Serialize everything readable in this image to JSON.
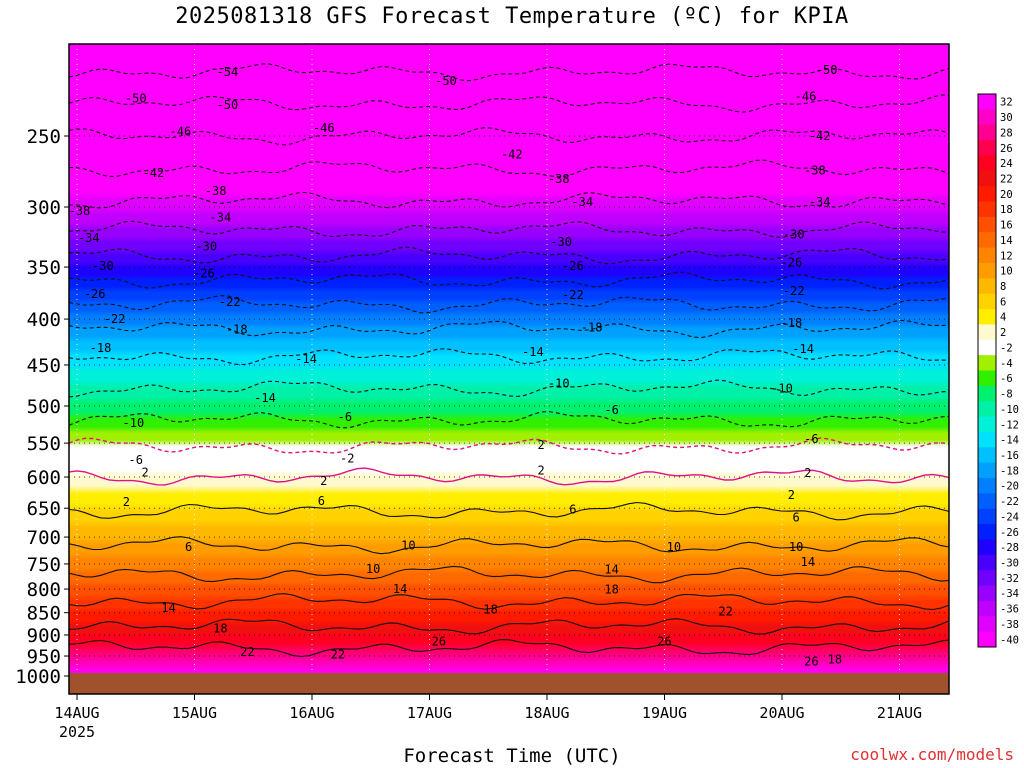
{
  "title": "2025081318 GFS Forecast Temperature (ºC) for KPIA",
  "credit": "coolwx.com/models",
  "chart_data": {
    "type": "heatmap",
    "title": "2025081318 GFS Forecast Temperature (ºC) for KPIA",
    "xlabel": "Forecast Time (UTC)",
    "ylabel": "",
    "y_scale": "log-pressure",
    "y_range_hPa": [
      1000,
      200
    ],
    "y_ticks": [
      250,
      300,
      350,
      400,
      450,
      500,
      550,
      600,
      650,
      700,
      750,
      800,
      850,
      900,
      950,
      1000
    ],
    "x_ticks": [
      "14AUG",
      "15AUG",
      "16AUG",
      "17AUG",
      "18AUG",
      "19AUG",
      "20AUG",
      "21AUG"
    ],
    "x_tick_sublabel": "2025",
    "colorbar": {
      "levels": [
        32,
        30,
        28,
        26,
        24,
        22,
        20,
        18,
        16,
        14,
        12,
        10,
        8,
        6,
        4,
        2,
        -2,
        -4,
        -6,
        -8,
        -10,
        -12,
        -14,
        -16,
        -18,
        -20,
        -22,
        -24,
        -26,
        -28,
        -30,
        -32,
        -34,
        -36,
        -38,
        -40
      ],
      "colors": [
        "#ff00ff",
        "#ff00c8",
        "#ff0090",
        "#ff0050",
        "#ff0020",
        "#f01010",
        "#ff1a00",
        "#ff3300",
        "#ff5000",
        "#ff6a00",
        "#ff8400",
        "#ff9d00",
        "#ffb800",
        "#ffd200",
        "#ffee00",
        "#fffacd",
        "#ffffff",
        "#a0f000",
        "#30f000",
        "#00f070",
        "#00f0a8",
        "#00f0d8",
        "#00e0ff",
        "#00c0ff",
        "#00a0ff",
        "#0080ff",
        "#0060ff",
        "#0040ff",
        "#0020ff",
        "#2000ff",
        "#4800ff",
        "#7000ff",
        "#9800ff",
        "#c000ff",
        "#e000ff",
        "#ff00ff"
      ]
    },
    "isotherms": [
      {
        "value": -54,
        "p": 212
      },
      {
        "value": -50,
        "p": 230
      },
      {
        "value": -46,
        "p": 250
      },
      {
        "value": -42,
        "p": 272
      },
      {
        "value": -38,
        "p": 295
      },
      {
        "value": -34,
        "p": 318
      },
      {
        "value": -30,
        "p": 340
      },
      {
        "value": -26,
        "p": 362
      },
      {
        "value": -22,
        "p": 385
      },
      {
        "value": -18,
        "p": 410
      },
      {
        "value": -14,
        "p": 440
      },
      {
        "value": -10,
        "p": 478
      },
      {
        "value": -6,
        "p": 518
      },
      {
        "value": -2,
        "p": 555
      },
      {
        "value": 2,
        "p": 600
      },
      {
        "value": 6,
        "p": 655
      },
      {
        "value": 10,
        "p": 715
      },
      {
        "value": 14,
        "p": 770
      },
      {
        "value": 18,
        "p": 825
      },
      {
        "value": 22,
        "p": 880
      },
      {
        "value": 26,
        "p": 930
      }
    ],
    "contour_labels": [
      {
        "text": "-54",
        "day": 1.28,
        "p": 212
      },
      {
        "text": "-50",
        "day": 3.14,
        "p": 217
      },
      {
        "text": "-50",
        "day": 6.38,
        "p": 211
      },
      {
        "text": "-50",
        "day": 0.5,
        "p": 227
      },
      {
        "text": "-50",
        "day": 1.28,
        "p": 231
      },
      {
        "text": "-46",
        "day": 6.2,
        "p": 226
      },
      {
        "text": "-46",
        "day": 0.88,
        "p": 247
      },
      {
        "text": "-46",
        "day": 2.1,
        "p": 245
      },
      {
        "text": "-42",
        "day": 3.7,
        "p": 262
      },
      {
        "text": "-42",
        "day": 6.32,
        "p": 250
      },
      {
        "text": "-42",
        "day": 0.65,
        "p": 275
      },
      {
        "text": "-38",
        "day": 1.18,
        "p": 288
      },
      {
        "text": "-38",
        "day": 4.1,
        "p": 279
      },
      {
        "text": "-38",
        "day": 6.28,
        "p": 273
      },
      {
        "text": "-38",
        "day": 0.02,
        "p": 303
      },
      {
        "text": "-34",
        "day": 1.22,
        "p": 308
      },
      {
        "text": "-34",
        "day": 4.3,
        "p": 296
      },
      {
        "text": "-34",
        "day": 6.32,
        "p": 296
      },
      {
        "text": "-34",
        "day": 0.1,
        "p": 325
      },
      {
        "text": "-30",
        "day": 1.1,
        "p": 332
      },
      {
        "text": "-30",
        "day": 4.12,
        "p": 328
      },
      {
        "text": "-30",
        "day": 6.1,
        "p": 322
      },
      {
        "text": "-30",
        "day": 0.22,
        "p": 349
      },
      {
        "text": "-26",
        "day": 1.08,
        "p": 356
      },
      {
        "text": "-26",
        "day": 4.22,
        "p": 349
      },
      {
        "text": "-26",
        "day": 6.08,
        "p": 346
      },
      {
        "text": "-26",
        "day": 0.15,
        "p": 375
      },
      {
        "text": "-22",
        "day": 1.3,
        "p": 383
      },
      {
        "text": "-22",
        "day": 4.22,
        "p": 376
      },
      {
        "text": "-22",
        "day": 6.1,
        "p": 372
      },
      {
        "text": "-22",
        "day": 0.32,
        "p": 400
      },
      {
        "text": "-18",
        "day": 1.36,
        "p": 411
      },
      {
        "text": "-18",
        "day": 4.38,
        "p": 409
      },
      {
        "text": "-18",
        "day": 6.08,
        "p": 404
      },
      {
        "text": "-18",
        "day": 0.2,
        "p": 431
      },
      {
        "text": "-14",
        "day": 1.95,
        "p": 443
      },
      {
        "text": "-14",
        "day": 3.88,
        "p": 435
      },
      {
        "text": "-14",
        "day": 6.18,
        "p": 432
      },
      {
        "text": "-14",
        "day": 1.6,
        "p": 490
      },
      {
        "text": "-10",
        "day": 4.1,
        "p": 472
      },
      {
        "text": "-10",
        "day": 6.0,
        "p": 478
      },
      {
        "text": "-10",
        "day": 0.48,
        "p": 522
      },
      {
        "text": "-6",
        "day": 2.28,
        "p": 514
      },
      {
        "text": "-6",
        "day": 4.55,
        "p": 505
      },
      {
        "text": "-6",
        "day": 6.25,
        "p": 544
      },
      {
        "text": "-6",
        "day": 0.5,
        "p": 574
      },
      {
        "text": "-2",
        "day": 2.3,
        "p": 572
      },
      {
        "text": "2",
        "day": 3.95,
        "p": 553
      },
      {
        "text": "2",
        "day": 6.22,
        "p": 594
      },
      {
        "text": "2",
        "day": 0.58,
        "p": 593
      },
      {
        "text": "2",
        "day": 2.1,
        "p": 606
      },
      {
        "text": "2",
        "day": 3.95,
        "p": 590
      },
      {
        "text": "2",
        "day": 6.08,
        "p": 628
      },
      {
        "text": "2",
        "day": 0.42,
        "p": 640
      },
      {
        "text": "6",
        "day": 2.08,
        "p": 638
      },
      {
        "text": "6",
        "day": 4.22,
        "p": 652
      },
      {
        "text": "6",
        "day": 6.12,
        "p": 666
      },
      {
        "text": "6",
        "day": 0.95,
        "p": 718
      },
      {
        "text": "10",
        "day": 2.82,
        "p": 715
      },
      {
        "text": "10",
        "day": 5.08,
        "p": 718
      },
      {
        "text": "10",
        "day": 6.12,
        "p": 718
      },
      {
        "text": "10",
        "day": 2.52,
        "p": 760
      },
      {
        "text": "14",
        "day": 4.55,
        "p": 761
      },
      {
        "text": "14",
        "day": 6.22,
        "p": 746
      },
      {
        "text": "14",
        "day": 0.78,
        "p": 840
      },
      {
        "text": "14",
        "day": 2.75,
        "p": 800
      },
      {
        "text": "18",
        "day": 4.55,
        "p": 801
      },
      {
        "text": "18",
        "day": 1.22,
        "p": 885
      },
      {
        "text": "18",
        "day": 3.52,
        "p": 843
      },
      {
        "text": "22",
        "day": 5.52,
        "p": 847
      },
      {
        "text": "22",
        "day": 1.45,
        "p": 940
      },
      {
        "text": "22",
        "day": 2.22,
        "p": 946
      },
      {
        "text": "26",
        "day": 3.08,
        "p": 915
      },
      {
        "text": "26",
        "day": 5.0,
        "p": 915
      },
      {
        "text": "26",
        "day": 6.25,
        "p": 964
      },
      {
        "text": "18",
        "day": 6.45,
        "p": 958
      }
    ]
  }
}
